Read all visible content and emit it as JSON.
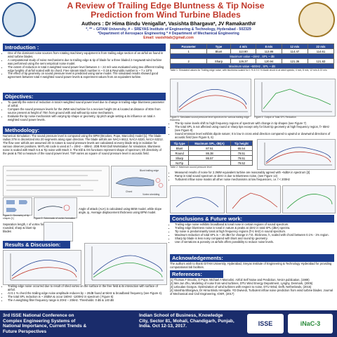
{
  "header": {
    "title": "A Review of Trailing Edge Bluntness & Tip Noise Prediction from Wind Turbine Blades",
    "authors": "Authors : Dr Hima Bindu Venigalla*, Vasishta Bhargava*, JV Ramakanth#",
    "affil1": "*, ** – GITAM University, # – SREYAS Institute of Engineering & Technology, Hyderabad - 502329",
    "affil2": "*Department of Aerospace Engineering * # Department of Mechanical Engineering",
    "email": "Email: vasishtab@gmail.com"
  },
  "intro": {
    "heading": "Introduction :",
    "bullets": [
      "One of the dominant noise sources from rotating machinery equipment is from trailing edge section of an airfoil as found in wind turbine blades.",
      "A computational study of noise mechanisms due to trailing edge & tip of blade for a three bladed 2 megawatt wind turbine was performed using the semi empirical noise model.",
      "The extent of reduction in total A-weighted sound power level between 4 – 22 m/s was evaluated using two different trailing edge heights of airfoil scaled with its chord. Free stream Mach number is ~ 0.19 & Reynolds number is ~ 7 x 10^6",
      "The effect of tip geometry on sound pressure level is predicted using same model. The simulated results showed good agreement between total A-weighted sound power levels & experiment values from an equivalent turbine."
    ]
  },
  "objectives": {
    "heading": "Objectives:",
    "bullets": [
      "To quantify the extent of reduction in total A weighted sound power level due to change in trailing edge bluntness parameter of airfoil.",
      "Compare the sound pressure levels for the 2MW wind turbine for a receiver height 2m & located at distance of 80m from source present at height of 70m from ground with and without tip noise mechanism.",
      "Evaluate the tip noise mechanism with varying tip shape or geometry, tip pitch angle setting & its influence on total A weighted sound power levels."
    ]
  },
  "methodology": {
    "heading": "Methodology:",
    "text": "Numerical Simulation: The sound pressure level is computed using the BPM (Brookes, Pope, Marcolini) model [1]. The blade radius 37m is discretized into 20 segments along span direction. The blade airfoils are NACA 6612, NACA 6320, NACA 63212. The flow over airfoils are assumed 2D in nature & sound pressure levels are calculated at every blade strip in isolation for various observer positions. MATLAB code is used at f = 20Hz – 40kHz. 2DB RAM Doll Workstation for simulation. Bluntness noise is scaled with Mach 5.5 & Tip noise with Mach 3. The Ebl & OS functions represent shape of spectrum; Dh directivity of the peak & T50 a measure of the sound power level. TSP varies as square of sound pressure level in acoustic field.",
    "sep_label": "Separation length, ℓ of vortex for rounded, sharp & blunt tip blades",
    "angle_label": "Angle of attack (AoA) is calculated using BEM model, while slope angle, ψ, Average displacement thickness using BPM model.",
    "fig1_caption": "Figure 1: Geometry of tip shapes [1]",
    "fig2_caption": "Figure 2: Schematic of vortex formation",
    "blunt_label": "Blunt trailing edge",
    "chord_label": "Chord",
    "vortex_label": "Vortex shedding"
  },
  "results": {
    "heading": "Results & Discussion:",
    "bullets": [
      "Trailing edge noise occurred due to result of shed vortex on the surface in the free field & its interaction with surface of airfoil.",
      "At 0.1 % chord the trailing edge noise amplitude reduces by ~ 20dB found at 5kHz & broadband frequency (see Figure 4).",
      "The total SPL reduction is ~ 20dBA & occur 160Hz -1200Hz in spectrum ( Figure 5)",
      "The A-weighting filter frequency range is 20Hz – 20kHz. Thresholds: 0 dB & 140 dB"
    ]
  },
  "table1": {
    "title": "Trailing Edge Noise",
    "cols": [
      "Parameter",
      "Type",
      "4 m/s",
      "8 m/s",
      "12 m/s",
      "22 m/s"
    ],
    "rows": [
      [
        "1",
        "Blunt",
        "113.80",
        "113.86",
        "114.47",
        "114.61"
      ],
      [
        "",
        "",
        "",
        "Maximum value ~1kHz , SPL ~ dB",
        "",
        ""
      ],
      [
        "2",
        "Sharp",
        "126.37",
        "120.94",
        "121.36",
        "121.63"
      ],
      [
        "",
        "",
        "",
        "Maximum value ~500Hz , SPL ~ dB",
        "",
        ""
      ]
    ],
    "caption": "Table 1: Simulated values for Trailing edge noise, with bluntness scaled for 1 % & 0.1 % blade chord & at wind speeds, 4 m/s, 8 m/s, 12 m/s & 22 m/s"
  },
  "right_mid": {
    "fig3_caption": "Figure 3: Simulated sound pressure level spectrum for various trailing edge thickness",
    "fig4_caption": "Figure 4: Output of Total SPL Reduction",
    "bullets": [
      "The tip noise levels shift to high frequency regions of spectrum with change in tip shapes (see Figure 7)",
      "The total SPL is not affected using round or sharp tips except only for blunt tip geometry at high frequency region, f> 5kHz (see Figure 8)",
      "Sound emission level exhibits dipole nature; It is low in cross wind direction compared to upwind or downwind directions of acoustic field (see Figure 5, 6)"
    ]
  },
  "table2": {
    "cols": [
      "Tip type",
      "Maximum SPL, dB(A)",
      "Tip height"
    ],
    "rows": [
      [
        "Blunt",
        "87.51",
        "65.54"
      ],
      [
        "Round",
        "86.38",
        "79.51"
      ],
      [
        "Sharp",
        "86.57",
        "79.51"
      ],
      [
        "NoTip",
        "",
        "79.52"
      ]
    ],
    "caption": "Table 2: Maximum sound pressure level"
  },
  "right_bullets2": [
    "Measured results of noise for 2.3MW equivalent turbine are reasonably agreed with ~5dBA in spectrum [3]",
    "Ramp in total sound spectrum at 1kHz is due to Bluntness noise, (see Figure 12)",
    "Turbulent inflow noise masks all other noise mechanisms at low frequencies, i.e. f < 200Hz"
  ],
  "conclusions": {
    "heading": "Conclusions  & Future work:",
    "bullets": [
      "Trailing edge noise exhibits broadband & tonal nose in certain regions of sound spectrum.",
      "Trailing edge bluntness noise is tonal in nature & peaks at 1kHz in total SPL (dBA) spectra.",
      "Tip noise is predominantly tonal at high frequency regions (f>1 kHz) in sound spectrum.",
      "Maximum reduction of total SPL is ~ 20 dBA for change in T.E. thickness, h, scaled with chord between 0.1% - 1% region.",
      "Sharp tip blade is less noisy compared with blunt and round tip geometry.",
      "Use of serrations & porosity on airfoils offers possibility to reduce noise levels."
    ]
  },
  "ack": {
    "heading": "Acknowledgements:",
    "text": "The authors wish to thank GITAM University, Hyderabad, Sreyas Institute of Engineering & Technology Hyderabad for providing computational lab facilities."
  },
  "refs": {
    "heading": "References:",
    "items": [
      "[1] Thomas F Brooks, D Pope, Michael A Marcolini. Airfoil Self Noise and Prediction, NASA publication, (1989)",
      "[2] Wei Jun Zhu, Modeling of noise from wind turbines, DTU Wind Energy Department, Lyngby, Denmark, (2005)",
      "[3] Leloudas Giorgos. Optimization of wind turbines with respect to noise, DTU Wind, Delft, Netherlands, (2015)",
      "[4] Vasishta Bhargava, Dr Hima Bindu Venigalla. YD Dwivedi, Turbulent inflow noise prediction from wind turbine blades. Journal of Mechanical and Civil Engineering, IOSR, (2017)"
    ]
  },
  "footer": {
    "conf1": "3rd ISSE National Conference on",
    "conf2": "Complex Engineering Systems of",
    "conf3": "National Importance, Current Trends &",
    "conf4": "Future Perspectives",
    "venue1": "Indian School of Business, Knowledge",
    "venue2": "City, Sector 81, Mohali, Chandigarh, Punjab,",
    "venue3": "India. Oct 12-13, 2017.",
    "logo1": "ISSE",
    "logo2": "iNaC-3"
  },
  "colors": {
    "heading_bg": "#1f3f8f",
    "title": "#c0392b",
    "footer_bg": "#1a2c6b"
  }
}
